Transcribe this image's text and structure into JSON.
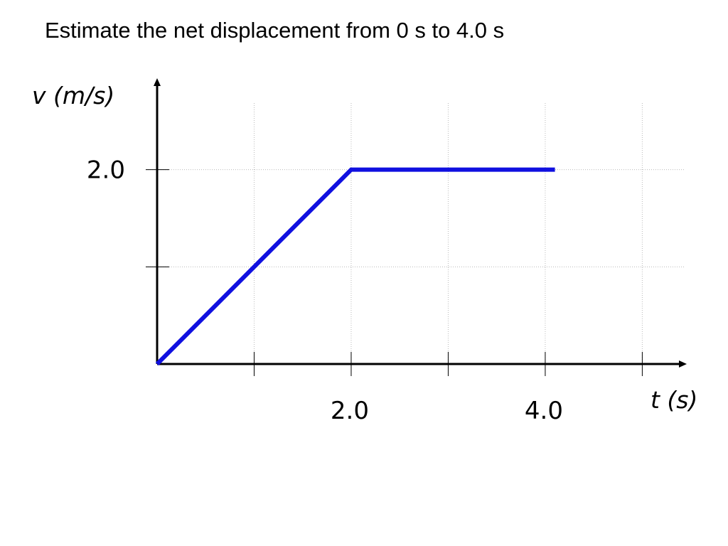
{
  "chart_data": {
    "type": "line",
    "title": "Estimate the net displacement from 0 s to 4.0 s",
    "x_label": "t (s)",
    "y_label": "v (m/s)",
    "x": [
      0,
      2,
      4.1
    ],
    "values": [
      0,
      2,
      2
    ],
    "color": "#1010e0",
    "xlim": [
      0,
      5.4
    ],
    "ylim": [
      0,
      2.7
    ],
    "xticks": [
      {
        "value": 1
      },
      {
        "value": 2,
        "label": "2.0"
      },
      {
        "value": 3
      },
      {
        "value": 4,
        "label": "4.0"
      },
      {
        "value": 5
      }
    ],
    "yticks": [
      {
        "value": 1
      },
      {
        "value": 2,
        "label": "2.0"
      }
    ],
    "grid": true
  }
}
